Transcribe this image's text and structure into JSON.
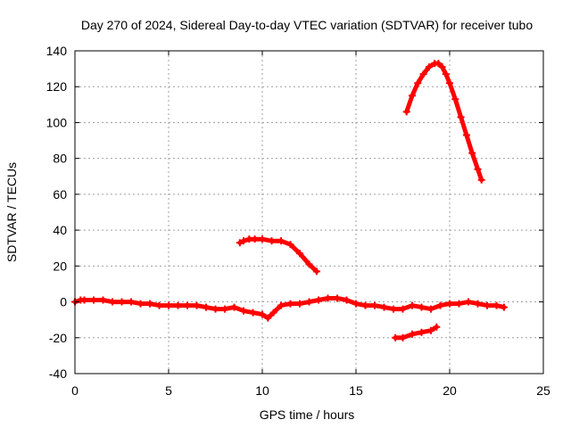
{
  "chart_data": {
    "type": "scatter",
    "title": "Day 270 of 2024, Sidereal Day-to-day VTEC variation (SDTVAR) for receiver tubo",
    "xlabel": "GPS time / hours",
    "ylabel": "SDTVAR / TECUs",
    "xlim": [
      0,
      25
    ],
    "ylim": [
      -40,
      140
    ],
    "x_ticks": [
      0,
      5,
      10,
      15,
      20,
      25
    ],
    "x_tick_labels": [
      "0",
      "5",
      "10",
      "15",
      "20",
      "25"
    ],
    "y_ticks": [
      -40,
      -20,
      0,
      20,
      40,
      60,
      80,
      100,
      120,
      140
    ],
    "y_tick_labels": [
      "-40",
      "-20",
      "0",
      "20",
      "40",
      "60",
      "80",
      "100",
      "120",
      "140"
    ],
    "grid": true,
    "marker_color": "#ff0000",
    "series": [
      {
        "name": "main-track",
        "x": [
          0.0,
          0.3,
          0.5,
          1.0,
          1.5,
          2.0,
          2.5,
          3.0,
          3.5,
          4.0,
          4.5,
          5.0,
          5.5,
          6.0,
          6.5,
          7.0,
          7.5,
          8.0,
          8.5,
          9.0,
          9.5,
          10.0,
          10.3,
          10.6,
          11.0,
          11.5,
          12.0,
          12.5,
          13.0,
          13.5,
          14.0,
          14.5,
          15.0,
          15.5,
          16.0,
          16.5,
          17.0,
          17.5,
          18.0,
          18.5,
          19.0,
          19.5,
          20.0,
          20.5,
          21.0,
          21.5,
          22.0,
          22.5,
          22.9
        ],
        "y": [
          0,
          1,
          1,
          1,
          1,
          0,
          0,
          0,
          -1,
          -1,
          -2,
          -2,
          -2,
          -2,
          -2,
          -3,
          -4,
          -4,
          -3,
          -5,
          -6,
          -7,
          -9,
          -6,
          -2,
          -1,
          -1,
          0,
          1,
          2,
          2,
          1,
          -1,
          -2,
          -2,
          -3,
          -4,
          -4,
          -2,
          -3,
          -4,
          -2,
          -1,
          -1,
          0,
          -1,
          -2,
          -2,
          -3
        ]
      },
      {
        "name": "segment-morning",
        "x": [
          8.8,
          9.0,
          9.3,
          9.6,
          10.0,
          10.5,
          11.0,
          11.5,
          12.0,
          12.5,
          12.9
        ],
        "y": [
          33,
          34,
          35,
          35,
          35,
          34,
          34,
          32,
          27,
          21,
          17
        ]
      },
      {
        "name": "segment-low",
        "x": [
          17.1,
          17.5,
          18.0,
          18.5,
          19.0,
          19.3
        ],
        "y": [
          -20,
          -20,
          -18,
          -17,
          -16,
          -14
        ]
      },
      {
        "name": "segment-arc",
        "x": [
          17.7,
          18.0,
          18.3,
          18.6,
          18.9,
          19.2,
          19.4,
          19.6,
          19.8,
          20.0,
          20.3,
          20.6,
          20.9,
          21.2,
          21.5,
          21.7
        ],
        "y": [
          106,
          115,
          122,
          127,
          131,
          133,
          133,
          131,
          127,
          122,
          113,
          103,
          93,
          83,
          74,
          68
        ]
      }
    ]
  }
}
